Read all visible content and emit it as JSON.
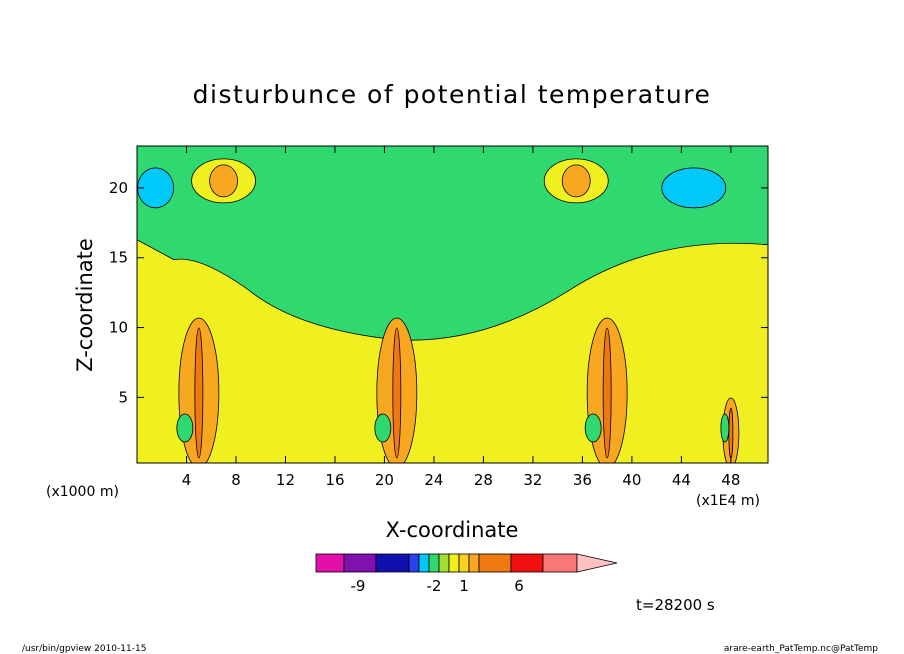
{
  "chart_data": {
    "type": "heatmap",
    "title": "disturbunce of potential temperature",
    "xlabel": "X-coordinate",
    "ylabel": "Z-coordinate",
    "x_unit_left": "(x1000 m)",
    "x_unit_right": "(x1E4 m)",
    "xlim": [
      0,
      51
    ],
    "ylim": [
      0.3,
      23
    ],
    "x_ticks": [
      4,
      8,
      12,
      16,
      20,
      24,
      28,
      32,
      36,
      40,
      44,
      48
    ],
    "y_ticks": [
      5,
      10,
      15,
      20
    ],
    "time_label": "t=28200 s",
    "colorbar": {
      "colors": [
        "#e010a8",
        "#8010b0",
        "#1010b0",
        "#2a40ee",
        "#00c8f8",
        "#30d870",
        "#a0e030",
        "#f0f020",
        "#f8d020",
        "#f8a820",
        "#f07810",
        "#f01010",
        "#f87878",
        "#ffc0c0"
      ],
      "tick_labels": [
        "-9",
        "-2",
        "1",
        "6"
      ]
    },
    "features": [
      {
        "kind": "background",
        "color": "#f0f020"
      },
      {
        "kind": "upper_band",
        "z_from": 17,
        "z_to": 23,
        "color": "#30d870"
      },
      {
        "kind": "warm_cell",
        "x": 7,
        "z": 20.5,
        "color": "#f8a820"
      },
      {
        "kind": "warm_cell",
        "x": 35.5,
        "z": 20.5,
        "color": "#f8a820"
      },
      {
        "kind": "cold_cell",
        "x": 1.5,
        "z": 20,
        "color": "#00c8f8"
      },
      {
        "kind": "cold_cell",
        "x": 45,
        "z": 20,
        "color": "#00c8f8"
      },
      {
        "kind": "convective_column",
        "x": 5,
        "color": "#f8a820"
      },
      {
        "kind": "convective_column",
        "x": 21,
        "color": "#f8a820"
      },
      {
        "kind": "convective_column",
        "x": 38,
        "color": "#f8a820"
      },
      {
        "kind": "convective_column",
        "x": 48,
        "color": "#f8a820"
      }
    ]
  },
  "footer": {
    "left": "/usr/bin/gpview  2010-11-15",
    "right": "arare-earth_PatTemp.nc@PatTemp"
  }
}
